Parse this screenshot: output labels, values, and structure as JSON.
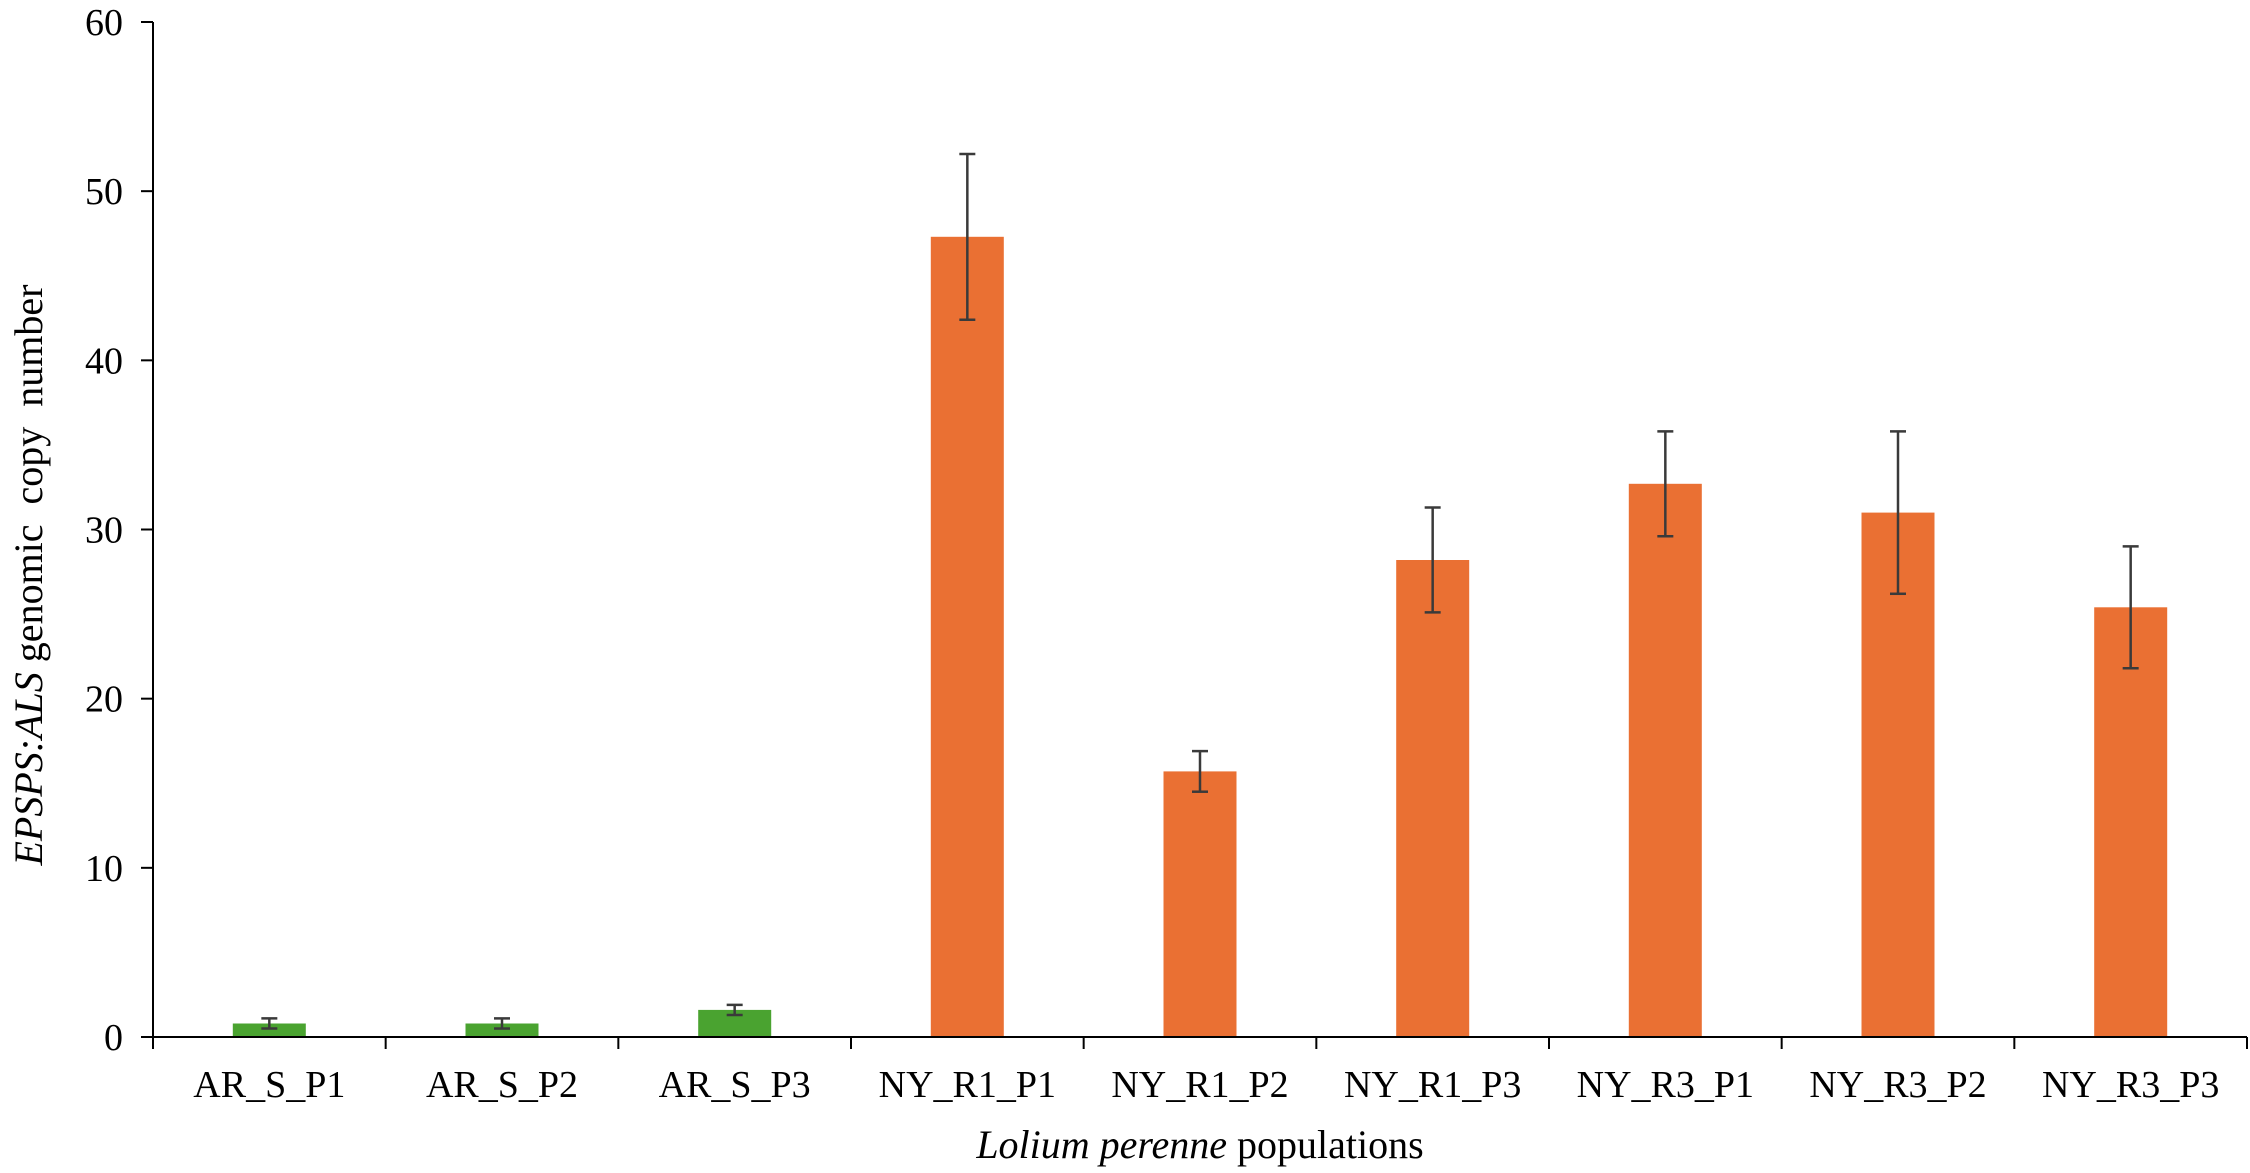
{
  "chart_data": {
    "type": "bar",
    "categories": [
      "AR_S_P1",
      "AR_S_P2",
      "AR_S_P3",
      "NY_R1_P1",
      "NY_R1_P2",
      "NY_R1_P3",
      "NY_R3_P1",
      "NY_R3_P2",
      "NY_R3_P3"
    ],
    "values": [
      0.8,
      0.8,
      1.6,
      47.3,
      15.7,
      28.2,
      32.7,
      31.0,
      25.4
    ],
    "errors": [
      0.3,
      0.3,
      0.3,
      4.9,
      1.2,
      3.1,
      3.1,
      4.8,
      3.6
    ],
    "bar_colors": [
      "#4aa330",
      "#4aa330",
      "#4aa330",
      "#ea7033",
      "#ea7033",
      "#ea7033",
      "#ea7033",
      "#ea7033",
      "#ea7033"
    ],
    "ylim": [
      0,
      60
    ],
    "yticks": [
      0,
      10,
      20,
      30,
      40,
      50,
      60
    ],
    "ylabel": {
      "parts": [
        {
          "text": "EPSPS:ALS",
          "italic": true
        },
        {
          "text": " genomic  copy  number",
          "italic": false
        }
      ]
    },
    "xlabel": {
      "parts": [
        {
          "text": "Lolium perenne",
          "italic": true
        },
        {
          "text": " populations",
          "italic": false
        }
      ]
    },
    "grid": false,
    "legend": "none"
  }
}
